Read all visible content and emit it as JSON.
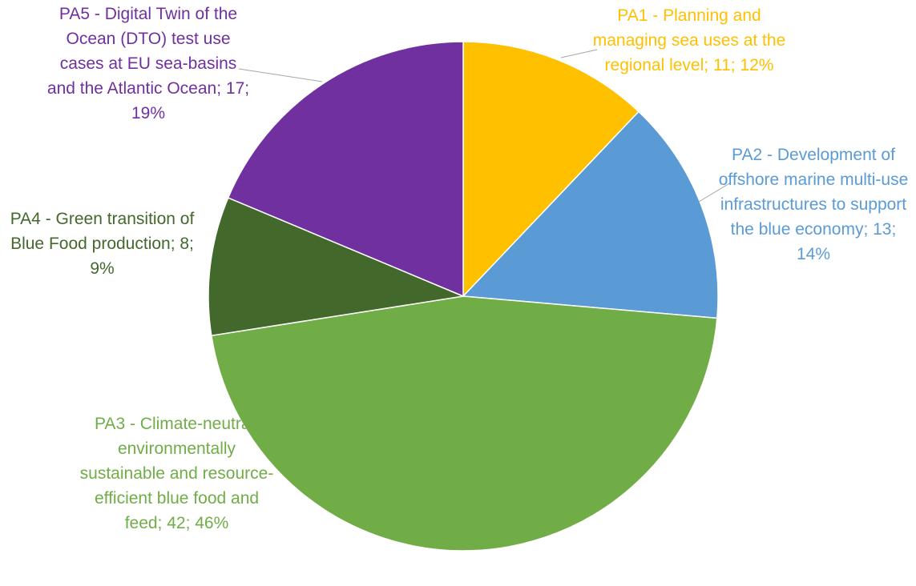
{
  "chart_data": {
    "type": "pie",
    "labels": [
      "PA1 - Planning and managing sea uses at the regional level; 11; 12%",
      "PA2 - Development of offshore marine multi-use infrastructures to support the blue economy; 13; 14%",
      "PA3 - Climate-neutral, environmentally sustainable and resource-efficient blue food and feed; 42; 46%",
      "PA4 - Green transition of Blue Food production; 8; 9%",
      "PA5 - Digital Twin of the Ocean (DTO) test use cases at EU sea-basins and the Atlantic Ocean; 17; 19%"
    ],
    "values": [
      11,
      13,
      42,
      8,
      17
    ],
    "colors": [
      "#ffc000",
      "#5b9bd5",
      "#70ad47",
      "#43682b",
      "#7030a0"
    ]
  }
}
